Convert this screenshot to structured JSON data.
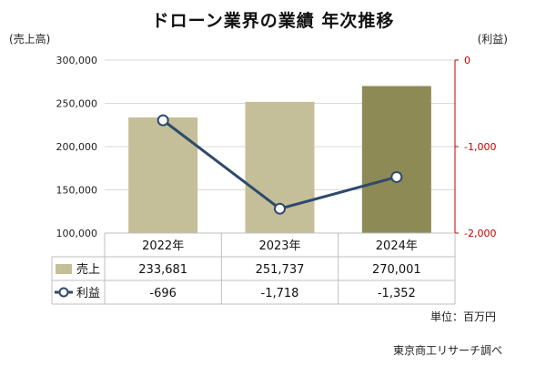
{
  "chart_data": {
    "type": "bar",
    "title": "ドローン業界の業績 年次推移",
    "left_axis_label": "(売上高)",
    "right_axis_label": "(利益)",
    "categories": [
      "2022年",
      "2023年",
      "2024年"
    ],
    "series": [
      {
        "name": "売上",
        "kind": "bar",
        "axis": "left",
        "values": [
          233681,
          251737,
          270001
        ],
        "display": [
          "233,681",
          "251,737",
          "270,001"
        ]
      },
      {
        "name": "利益",
        "kind": "line",
        "axis": "right",
        "values": [
          -696,
          -1718,
          -1352
        ],
        "display": [
          "-696",
          "-1,718",
          "-1,352"
        ]
      }
    ],
    "y_left": {
      "min": 100000,
      "max": 300000,
      "ticks": [
        "300,000",
        "250,000",
        "200,000",
        "150,000",
        "100,000"
      ],
      "tick_values": [
        300000,
        250000,
        200000,
        150000,
        100000
      ]
    },
    "y_right": {
      "min": -2000,
      "max": 0,
      "ticks": [
        "0",
        "-1,000",
        "-2,000"
      ],
      "tick_values": [
        0,
        -1000,
        -2000
      ]
    },
    "grid": true,
    "legend": "data-table",
    "colors": {
      "bar": "#c4bf98",
      "bar_highlight": "#8e8a55",
      "line": "#2e4a6b",
      "right_axis": "#c00000",
      "grid": "#d9d9d9"
    },
    "unit_note": "単位：百万円",
    "source": "東京商工リサーチ調べ"
  }
}
